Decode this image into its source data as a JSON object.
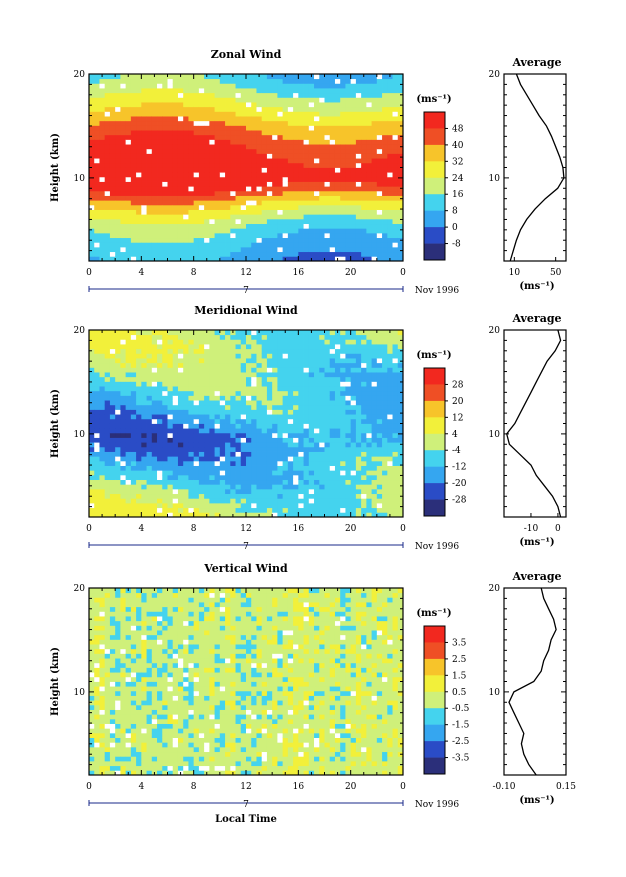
{
  "figure": {
    "xaxis_label": "Local Time",
    "day_marker": "7",
    "date_label": "Nov 1996",
    "height_label": "Height (km)",
    "units_label": "(ms⁻¹)",
    "average_title": "Average"
  },
  "colors": {
    "scale": [
      "#2b2f7a",
      "#2a4cc6",
      "#2f73e6",
      "#35a6f0",
      "#44d3ee",
      "#8cf0c8",
      "#cff07a",
      "#f2f03a",
      "#f7c42a",
      "#f49226",
      "#ef4f25",
      "#f2281f"
    ],
    "background": "#ffffff"
  },
  "chart_data": [
    {
      "type": "heatmap",
      "name": "zonal",
      "title": "Zonal Wind",
      "x_ticks": [
        "0",
        "4",
        "8",
        "12",
        "16",
        "20",
        "0"
      ],
      "y_ticks": [
        "20",
        "10"
      ],
      "xlim": [
        0,
        24
      ],
      "ylim": [
        2,
        20
      ],
      "colorbar_ticks": [
        "48",
        "40",
        "32",
        "24",
        "16",
        "8",
        "0",
        "-8"
      ],
      "profile_ranges": [
        [
          2,
          20.0
        ],
        [
          2,
          20.0
        ]
      ],
      "profile": {
        "x_ticks": [
          "10",
          "50"
        ],
        "xlim": [
          0,
          60
        ],
        "heights": [
          2,
          3,
          4,
          5,
          6,
          7,
          8,
          9,
          10,
          11,
          12,
          13,
          14,
          15,
          16,
          17,
          18,
          19,
          20
        ],
        "values": [
          6,
          9,
          12,
          16,
          22,
          30,
          40,
          52,
          58,
          57,
          54,
          50,
          46,
          41,
          34,
          28,
          22,
          16,
          12
        ]
      }
    },
    {
      "type": "heatmap",
      "name": "meridional",
      "title": "Meridional Wind",
      "x_ticks": [
        "0",
        "4",
        "8",
        "12",
        "16",
        "20",
        "0"
      ],
      "y_ticks": [
        "20",
        "10"
      ],
      "xlim": [
        0,
        24
      ],
      "ylim": [
        2,
        20
      ],
      "colorbar_ticks": [
        "28",
        "20",
        "12",
        "4",
        "-4",
        "-12",
        "-20",
        "-28"
      ],
      "profile": {
        "x_ticks": [
          "-10",
          "0"
        ],
        "xlim": [
          -20,
          3
        ],
        "heights": [
          2,
          3,
          4,
          5,
          6,
          7,
          8,
          9,
          10,
          11,
          12,
          13,
          14,
          15,
          16,
          17,
          18,
          19,
          20
        ],
        "values": [
          1,
          0,
          -2,
          -5,
          -8,
          -10,
          -14,
          -18,
          -19,
          -16,
          -14,
          -12,
          -10,
          -8,
          -6,
          -4,
          -1,
          1,
          0
        ]
      }
    },
    {
      "type": "heatmap",
      "name": "vertical",
      "title": "Vertical Wind",
      "x_ticks": [
        "0",
        "4",
        "8",
        "12",
        "16",
        "20",
        "0"
      ],
      "y_ticks": [
        "20",
        "10"
      ],
      "xlim": [
        0,
        24
      ],
      "ylim": [
        2,
        20
      ],
      "colorbar_ticks": [
        "3.5",
        "2.5",
        "1.5",
        "0.5",
        "-0.5",
        "-1.5",
        "-2.5",
        "-3.5"
      ],
      "profile": {
        "x_ticks": [
          "-0.10",
          "0.15"
        ],
        "xlim": [
          -0.1,
          0.15
        ],
        "heights": [
          2,
          3,
          4,
          5,
          6,
          7,
          8,
          9,
          10,
          11,
          12,
          13,
          14,
          15,
          16,
          17,
          18,
          19,
          20
        ],
        "values": [
          0.03,
          0.0,
          -0.02,
          -0.03,
          -0.02,
          -0.04,
          -0.06,
          -0.08,
          -0.06,
          0.02,
          0.05,
          0.06,
          0.08,
          0.09,
          0.11,
          0.1,
          0.08,
          0.06,
          0.05
        ]
      }
    }
  ]
}
